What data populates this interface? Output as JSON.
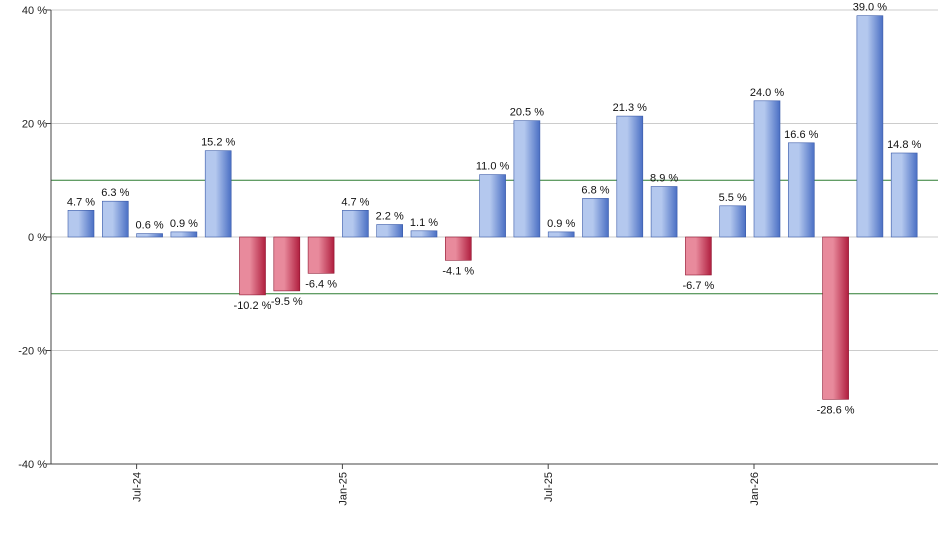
{
  "chart_data": {
    "type": "bar",
    "values": [
      4.7,
      6.3,
      0.6,
      0.9,
      15.2,
      -10.2,
      -9.5,
      -6.4,
      4.7,
      2.2,
      1.1,
      -4.1,
      11.0,
      20.5,
      0.9,
      6.8,
      21.3,
      8.9,
      -6.7,
      5.5,
      24.0,
      16.6,
      -28.6,
      39.0,
      14.8
    ],
    "data_labels": [
      "4.7 %",
      "6.3 %",
      "0.6 %",
      "0.9 %",
      "15.2 %",
      "-10.2 %",
      "-9.5 %",
      "-6.4 %",
      "4.7 %",
      "2.2 %",
      "1.1 %",
      "-4.1 %",
      "11.0 %",
      "20.5 %",
      "0.9 %",
      "6.8 %",
      "21.3 %",
      "8.9 %",
      "-6.7 %",
      "5.5 %",
      "24.0 %",
      "16.6 %",
      "-28.6 %",
      "39.0 %",
      "14.8 %"
    ],
    "x_tick_labels": [
      {
        "label": "Jul-24",
        "index": 2
      },
      {
        "label": "Jan-25",
        "index": 8
      },
      {
        "label": "Jul-25",
        "index": 14
      },
      {
        "label": "Jan-26",
        "index": 20
      }
    ],
    "y_ticks": [
      40,
      20,
      0,
      -20,
      -40
    ],
    "y_tick_labels": [
      "40 %",
      "20 %",
      "0 %",
      "-20 %",
      "-40 %"
    ],
    "ylim": [
      -40,
      40
    ],
    "reference_lines": [
      10,
      -10
    ],
    "grid": true,
    "colors": {
      "positive_light": "#b4c8ee",
      "positive_dark": "#4a6fc4",
      "negative_light": "#e88a9c",
      "negative_dark": "#b01e3e",
      "reference_line": "#2e7d32",
      "grid": "#cccccc",
      "axis": "#444444"
    }
  }
}
